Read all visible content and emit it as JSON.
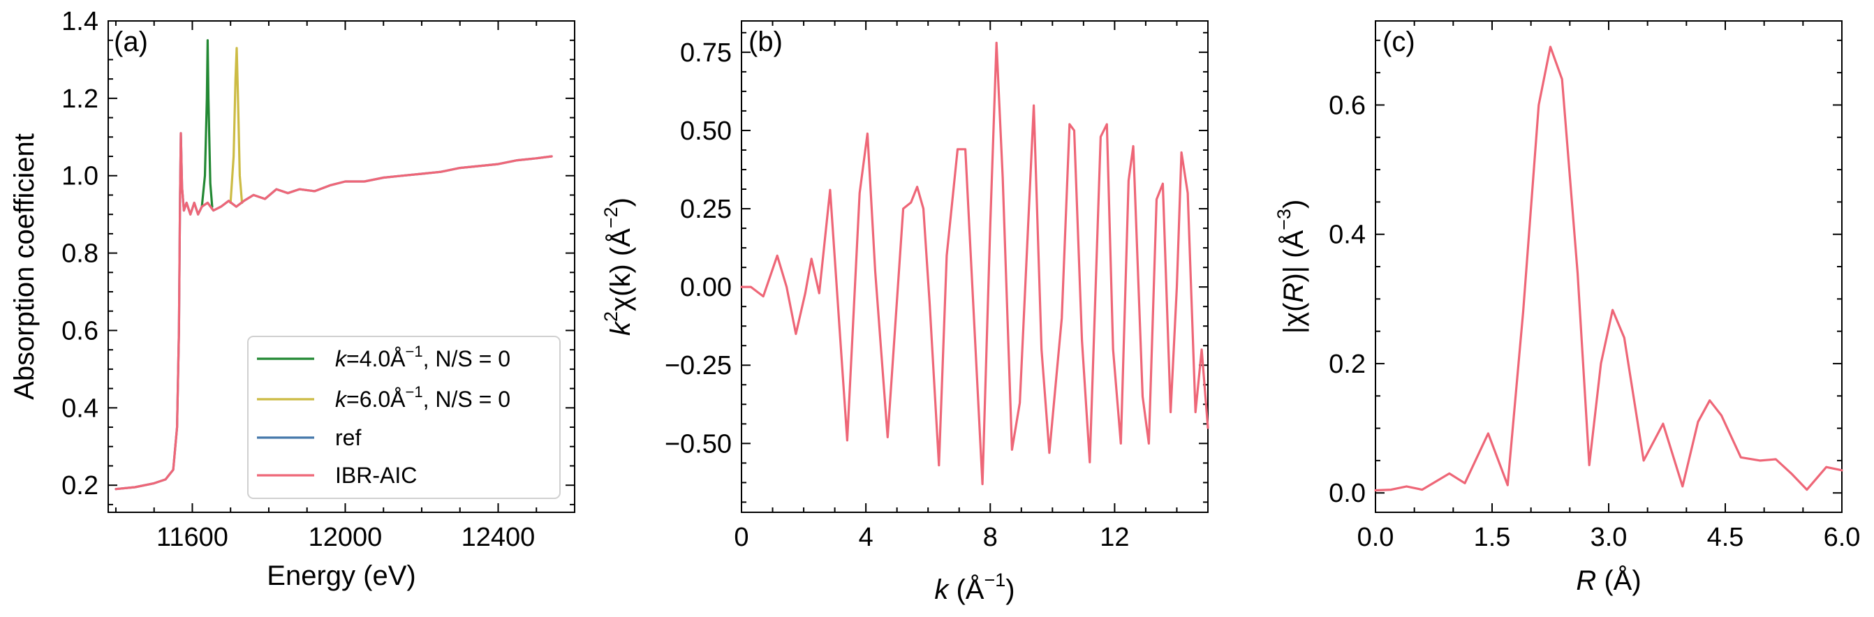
{
  "chart_data": [
    {
      "type": "line",
      "panel_label": "(a)",
      "xlabel": "Energy (eV)",
      "ylabel": "Absorption coefficient",
      "xlim": [
        11380,
        12600
      ],
      "ylim": [
        0.13,
        1.4
      ],
      "xticks": [
        11600,
        12000,
        12400
      ],
      "xtick_labels": [
        "11600",
        "12000",
        "12400"
      ],
      "yticks": [
        0.2,
        0.4,
        0.6,
        0.8,
        1.0,
        1.2,
        1.4
      ],
      "ytick_labels": [
        "0.2",
        "0.4",
        "0.6",
        "0.8",
        "1.0",
        "1.2",
        "1.4"
      ],
      "legend_position": "lower-right",
      "series": [
        {
          "name_parts": [
            "k",
            "=4.0Å",
            "−1",
            ", N/S = 0"
          ],
          "color": "#228833",
          "points": [
            [
              11625,
              0.92
            ],
            [
              11633,
              1.0
            ],
            [
              11638,
              1.2
            ],
            [
              11640,
              1.35
            ],
            [
              11642,
              1.2
            ],
            [
              11647,
              0.98
            ],
            [
              11652,
              0.92
            ]
          ]
        },
        {
          "name_parts": [
            "k",
            "=6.0Å",
            "−1",
            ", N/S = 0"
          ],
          "color": "#CCBB44",
          "points": [
            [
              11700,
              0.93
            ],
            [
              11708,
              1.05
            ],
            [
              11713,
              1.25
            ],
            [
              11716,
              1.33
            ],
            [
              11719,
              1.22
            ],
            [
              11724,
              1.0
            ],
            [
              11730,
              0.93
            ]
          ]
        },
        {
          "name": "ref",
          "color": "#4477AA",
          "points": [
            [
              11400,
              0.19
            ],
            [
              11450,
              0.195
            ],
            [
              11500,
              0.205
            ],
            [
              11530,
              0.215
            ],
            [
              11550,
              0.24
            ],
            [
              11560,
              0.35
            ],
            [
              11565,
              0.6
            ],
            [
              11568,
              0.95
            ],
            [
              11570,
              1.11
            ],
            [
              11573,
              0.97
            ],
            [
              11578,
              0.91
            ],
            [
              11585,
              0.93
            ],
            [
              11595,
              0.9
            ],
            [
              11605,
              0.93
            ],
            [
              11615,
              0.9
            ],
            [
              11625,
              0.92
            ],
            [
              11640,
              0.93
            ],
            [
              11655,
              0.91
            ],
            [
              11675,
              0.92
            ],
            [
              11695,
              0.935
            ],
            [
              11715,
              0.92
            ],
            [
              11735,
              0.935
            ],
            [
              11760,
              0.95
            ],
            [
              11790,
              0.94
            ],
            [
              11820,
              0.965
            ],
            [
              11850,
              0.955
            ],
            [
              11880,
              0.965
            ],
            [
              11920,
              0.96
            ],
            [
              11960,
              0.975
            ],
            [
              12000,
              0.985
            ],
            [
              12050,
              0.985
            ],
            [
              12100,
              0.995
            ],
            [
              12150,
              1.0
            ],
            [
              12200,
              1.005
            ],
            [
              12250,
              1.01
            ],
            [
              12300,
              1.02
            ],
            [
              12350,
              1.025
            ],
            [
              12400,
              1.03
            ],
            [
              12450,
              1.04
            ],
            [
              12500,
              1.045
            ],
            [
              12540,
              1.05
            ]
          ]
        },
        {
          "name": "IBR-AIC",
          "color": "#EE6677",
          "points": [
            [
              11400,
              0.19
            ],
            [
              11450,
              0.195
            ],
            [
              11500,
              0.205
            ],
            [
              11530,
              0.215
            ],
            [
              11550,
              0.24
            ],
            [
              11560,
              0.35
            ],
            [
              11565,
              0.6
            ],
            [
              11568,
              0.95
            ],
            [
              11570,
              1.11
            ],
            [
              11573,
              0.97
            ],
            [
              11578,
              0.91
            ],
            [
              11585,
              0.93
            ],
            [
              11595,
              0.9
            ],
            [
              11605,
              0.93
            ],
            [
              11615,
              0.9
            ],
            [
              11625,
              0.92
            ],
            [
              11640,
              0.93
            ],
            [
              11655,
              0.91
            ],
            [
              11675,
              0.92
            ],
            [
              11695,
              0.935
            ],
            [
              11715,
              0.92
            ],
            [
              11735,
              0.935
            ],
            [
              11760,
              0.95
            ],
            [
              11790,
              0.94
            ],
            [
              11820,
              0.965
            ],
            [
              11850,
              0.955
            ],
            [
              11880,
              0.965
            ],
            [
              11920,
              0.96
            ],
            [
              11960,
              0.975
            ],
            [
              12000,
              0.985
            ],
            [
              12050,
              0.985
            ],
            [
              12100,
              0.995
            ],
            [
              12150,
              1.0
            ],
            [
              12200,
              1.005
            ],
            [
              12250,
              1.01
            ],
            [
              12300,
              1.02
            ],
            [
              12350,
              1.025
            ],
            [
              12400,
              1.03
            ],
            [
              12450,
              1.04
            ],
            [
              12500,
              1.045
            ],
            [
              12540,
              1.05
            ]
          ]
        }
      ]
    },
    {
      "type": "line",
      "panel_label": "(b)",
      "xlabel_parts": [
        "k",
        " (Å",
        "−1",
        ")"
      ],
      "ylabel_parts": [
        "k",
        "2",
        "χ(k) (Å",
        "−2",
        ")"
      ],
      "xlim": [
        0,
        15
      ],
      "ylim": [
        -0.72,
        0.85
      ],
      "xticks": [
        0,
        4,
        8,
        12
      ],
      "xtick_labels": [
        "0",
        "4",
        "8",
        "12"
      ],
      "yticks": [
        -0.5,
        -0.25,
        0.0,
        0.25,
        0.5,
        0.75
      ],
      "ytick_labels": [
        "−0.50",
        "−0.25",
        "0.00",
        "0.25",
        "0.50",
        "0.75"
      ],
      "series": [
        {
          "name": "",
          "color": "#EE6677",
          "points": [
            [
              0,
              0.0
            ],
            [
              0.3,
              0.0
            ],
            [
              0.7,
              -0.03
            ],
            [
              1.15,
              0.1
            ],
            [
              1.45,
              0.0
            ],
            [
              1.75,
              -0.15
            ],
            [
              2.05,
              -0.02
            ],
            [
              2.25,
              0.09
            ],
            [
              2.5,
              -0.02
            ],
            [
              2.85,
              0.31
            ],
            [
              3.4,
              -0.49
            ],
            [
              3.8,
              0.3
            ],
            [
              4.05,
              0.49
            ],
            [
              4.3,
              0.05
            ],
            [
              4.7,
              -0.48
            ],
            [
              5.2,
              0.25
            ],
            [
              5.45,
              0.27
            ],
            [
              5.65,
              0.32
            ],
            [
              5.85,
              0.25
            ],
            [
              6.05,
              -0.05
            ],
            [
              6.35,
              -0.57
            ],
            [
              6.6,
              0.1
            ],
            [
              6.95,
              0.44
            ],
            [
              7.2,
              0.44
            ],
            [
              7.45,
              -0.05
            ],
            [
              7.75,
              -0.63
            ],
            [
              8.0,
              0.2
            ],
            [
              8.2,
              0.78
            ],
            [
              8.4,
              0.35
            ],
            [
              8.7,
              -0.52
            ],
            [
              8.95,
              -0.37
            ],
            [
              9.4,
              0.58
            ],
            [
              9.65,
              -0.2
            ],
            [
              9.9,
              -0.53
            ],
            [
              10.3,
              -0.1
            ],
            [
              10.55,
              0.52
            ],
            [
              10.7,
              0.5
            ],
            [
              10.95,
              -0.17
            ],
            [
              11.2,
              -0.56
            ],
            [
              11.55,
              0.48
            ],
            [
              11.75,
              0.52
            ],
            [
              11.95,
              -0.2
            ],
            [
              12.2,
              -0.5
            ],
            [
              12.45,
              0.34
            ],
            [
              12.6,
              0.45
            ],
            [
              12.9,
              -0.35
            ],
            [
              13.1,
              -0.5
            ],
            [
              13.35,
              0.28
            ],
            [
              13.55,
              0.33
            ],
            [
              13.8,
              -0.4
            ],
            [
              14.0,
              0.0
            ],
            [
              14.15,
              0.43
            ],
            [
              14.35,
              0.3
            ],
            [
              14.6,
              -0.4
            ],
            [
              14.8,
              -0.2
            ],
            [
              15.0,
              -0.45
            ]
          ]
        }
      ]
    },
    {
      "type": "line",
      "panel_label": "(c)",
      "xlabel_parts": [
        "R",
        " (Å)"
      ],
      "ylabel_parts": [
        "|χ(",
        "R",
        ")| (Å",
        "−3",
        ")"
      ],
      "xlim": [
        0,
        6
      ],
      "ylim": [
        -0.03,
        0.73
      ],
      "xticks": [
        0,
        1.5,
        3,
        4.5,
        6
      ],
      "xtick_labels": [
        "0.0",
        "1.5",
        "3.0",
        "4.5",
        "6.0"
      ],
      "yticks": [
        0.0,
        0.2,
        0.4,
        0.6
      ],
      "ytick_labels": [
        "0.0",
        "0.2",
        "0.4",
        "0.6"
      ],
      "series": [
        {
          "name": "",
          "color": "#EE6677",
          "points": [
            [
              0,
              0.004
            ],
            [
              0.2,
              0.005
            ],
            [
              0.4,
              0.01
            ],
            [
              0.6,
              0.005
            ],
            [
              0.95,
              0.03
            ],
            [
              1.15,
              0.015
            ],
            [
              1.45,
              0.092
            ],
            [
              1.7,
              0.012
            ],
            [
              1.9,
              0.28
            ],
            [
              2.1,
              0.6
            ],
            [
              2.25,
              0.69
            ],
            [
              2.4,
              0.64
            ],
            [
              2.6,
              0.34
            ],
            [
              2.75,
              0.043
            ],
            [
              2.9,
              0.2
            ],
            [
              3.05,
              0.283
            ],
            [
              3.2,
              0.24
            ],
            [
              3.45,
              0.05
            ],
            [
              3.7,
              0.107
            ],
            [
              3.95,
              0.01
            ],
            [
              4.15,
              0.11
            ],
            [
              4.3,
              0.143
            ],
            [
              4.45,
              0.12
            ],
            [
              4.7,
              0.055
            ],
            [
              4.95,
              0.05
            ],
            [
              5.15,
              0.052
            ],
            [
              5.35,
              0.03
            ],
            [
              5.55,
              0.005
            ],
            [
              5.8,
              0.04
            ],
            [
              6.0,
              0.035
            ]
          ]
        }
      ]
    }
  ]
}
